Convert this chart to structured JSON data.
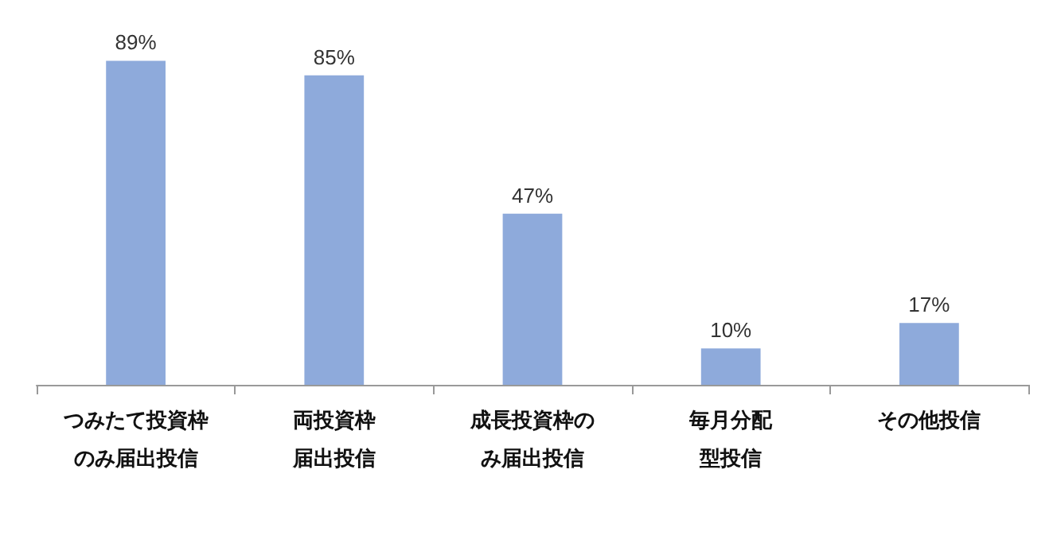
{
  "chart_data": {
    "type": "bar",
    "categories": [
      "つみたて投資枠のみ届出投信",
      "両投資枠届出投信",
      "成長投資枠のみ届出投信",
      "毎月分配型投信",
      "その他投信"
    ],
    "values": [
      89,
      85,
      47,
      10,
      17
    ],
    "value_labels": [
      "89%",
      "85%",
      "47%",
      "10%",
      "17%"
    ],
    "color": "#8eaadb"
  }
}
